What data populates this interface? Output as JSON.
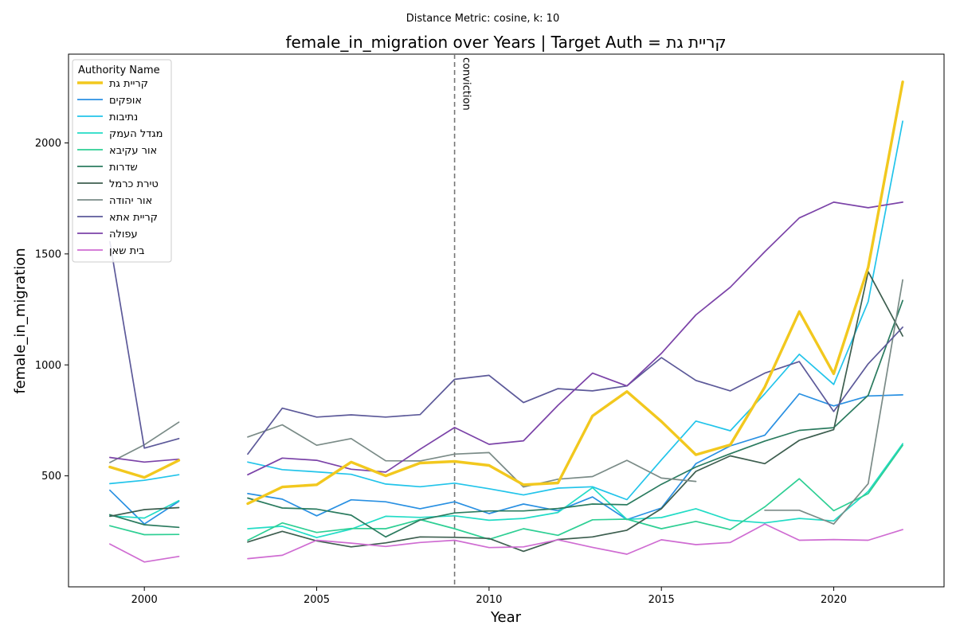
{
  "chart_data": {
    "type": "line",
    "suptitle": "Distance Metric: cosine, k: 10",
    "title": "female_in_migration over Years | Target Auth = קריית גת",
    "xlabel": "Year",
    "ylabel": "female_in_migration",
    "xlim": [
      1997.8,
      2023.2
    ],
    "ylim": [
      0,
      2400
    ],
    "xticks": [
      2000,
      2005,
      2010,
      2015,
      2020
    ],
    "yticks": [
      500,
      1000,
      1500,
      2000
    ],
    "grid": false,
    "legend": {
      "title": "Authority Name",
      "placement": "top-left"
    },
    "annotation": {
      "text": "conviction",
      "x": 2009,
      "line_style": "dashed",
      "color": "#777777"
    },
    "x": [
      1999,
      2000,
      2001,
      2002,
      2003,
      2004,
      2005,
      2006,
      2007,
      2008,
      2009,
      2010,
      2011,
      2012,
      2013,
      2014,
      2015,
      2016,
      2017,
      2018,
      2019,
      2020,
      2021,
      2022
    ],
    "series": [
      {
        "name": "קריית גת",
        "color": "#f2c81e",
        "width": 3.4,
        "target": true,
        "values": [
          540,
          493,
          570,
          null,
          375,
          450,
          460,
          562,
          500,
          558,
          565,
          547,
          460,
          468,
          770,
          880,
          745,
          595,
          640,
          900,
          1240,
          960,
          1440,
          2275
        ]
      },
      {
        "name": "אופקים",
        "color": "#2990e2",
        "width": 1.7,
        "values": [
          435,
          283,
          385,
          null,
          420,
          395,
          320,
          392,
          383,
          352,
          383,
          330,
          373,
          343,
          405,
          303,
          355,
          555,
          635,
          683,
          870,
          815,
          860,
          865
        ]
      },
      {
        "name": "נתיבות",
        "color": "#22c4ea",
        "width": 1.7,
        "values": [
          465,
          480,
          505,
          null,
          562,
          528,
          518,
          507,
          463,
          451,
          467,
          442,
          414,
          445,
          451,
          393,
          572,
          747,
          703,
          870,
          1048,
          912,
          1285,
          2098
        ]
      },
      {
        "name": "מגדל העמק",
        "color": "#22dcc6",
        "width": 1.7,
        "values": [
          320,
          310,
          388,
          null,
          262,
          273,
          222,
          260,
          318,
          313,
          320,
          300,
          308,
          335,
          447,
          304,
          312,
          352,
          300,
          288,
          308,
          297,
          430,
          645
        ]
      },
      {
        "name": "אור עקיבא",
        "color": "#2ecf94",
        "width": 1.7,
        "values": [
          275,
          235,
          236,
          null,
          210,
          288,
          245,
          263,
          262,
          303,
          262,
          214,
          262,
          232,
          302,
          305,
          262,
          295,
          258,
          360,
          487,
          343,
          420,
          638
        ]
      },
      {
        "name": "שדרות",
        "color": "#2b7b5f",
        "width": 1.7,
        "values": [
          325,
          280,
          268,
          null,
          400,
          355,
          350,
          323,
          225,
          301,
          333,
          342,
          342,
          353,
          373,
          370,
          462,
          540,
          600,
          657,
          705,
          717,
          863,
          1290
        ]
      },
      {
        "name": "טירת כרמל",
        "color": "#3d5e4f",
        "width": 1.7,
        "values": [
          318,
          348,
          357,
          null,
          202,
          250,
          207,
          180,
          198,
          225,
          223,
          218,
          160,
          213,
          225,
          255,
          352,
          520,
          590,
          555,
          660,
          708,
          1420,
          1130
        ]
      },
      {
        "name": "אור יהודה",
        "color": "#7a8b87",
        "width": 1.7,
        "values": [
          560,
          640,
          742,
          null,
          675,
          730,
          638,
          668,
          568,
          567,
          598,
          605,
          450,
          485,
          497,
          570,
          490,
          475,
          null,
          345,
          345,
          283,
          465,
          1383
        ]
      },
      {
        "name": "קריית אתא",
        "color": "#5c5999",
        "width": 1.7,
        "values": [
          1555,
          625,
          668,
          null,
          598,
          805,
          765,
          775,
          765,
          776,
          935,
          953,
          830,
          893,
          883,
          905,
          1033,
          930,
          883,
          963,
          1015,
          790,
          1005,
          1170
        ]
      },
      {
        "name": "עפולה",
        "color": "#7b43a8",
        "width": 1.7,
        "values": [
          583,
          562,
          575,
          null,
          505,
          580,
          570,
          530,
          517,
          620,
          718,
          642,
          658,
          818,
          963,
          905,
          1052,
          1225,
          1350,
          1510,
          1662,
          1733,
          1708,
          1733
        ]
      },
      {
        "name": "בית שאן",
        "color": "#cf6cd2",
        "width": 1.7,
        "values": [
          193,
          112,
          137,
          null,
          127,
          142,
          210,
          197,
          182,
          200,
          210,
          177,
          180,
          212,
          178,
          147,
          212,
          190,
          200,
          283,
          210,
          213,
          210,
          258
        ]
      }
    ]
  }
}
